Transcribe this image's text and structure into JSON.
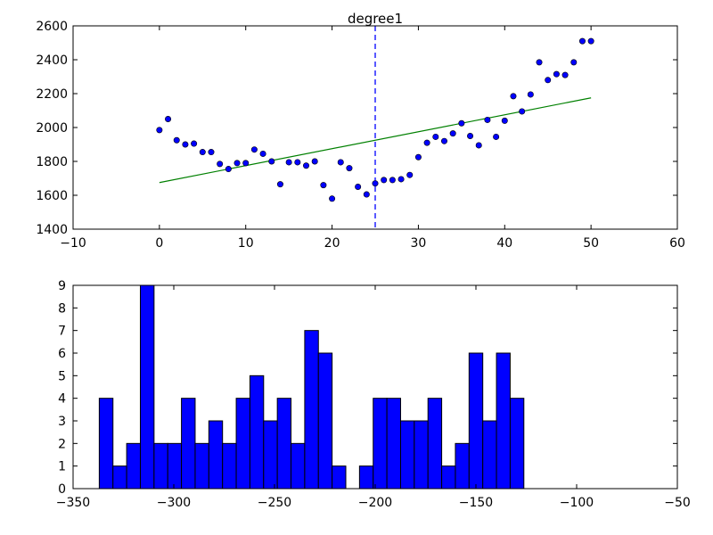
{
  "colors": {
    "scatter_fill": "#0000ff",
    "fit_line": "#008000",
    "marker_line": "#0000ff",
    "bar_fill": "#0000ff",
    "bar_edge": "#000000",
    "axes": "#000000",
    "background": "#ffffff"
  },
  "chart_data": [
    {
      "type": "scatter",
      "title": "degree1",
      "xlabel": "",
      "ylabel": "",
      "xlim": [
        -10,
        60
      ],
      "ylim": [
        1400,
        2600
      ],
      "xticks": [
        -10,
        0,
        10,
        20,
        30,
        40,
        50,
        60
      ],
      "yticks": [
        1400,
        1600,
        1800,
        2000,
        2200,
        2400,
        2600
      ],
      "grid": false,
      "points": {
        "x": [
          0,
          1,
          2,
          3,
          4,
          5,
          6,
          7,
          8,
          9,
          10,
          11,
          12,
          13,
          14,
          15,
          16,
          17,
          18,
          19,
          20,
          21,
          22,
          23,
          24,
          25,
          26,
          27,
          28,
          29,
          30,
          31,
          32,
          33,
          34,
          35,
          36,
          37,
          38,
          39,
          40,
          41,
          42,
          43,
          44,
          45,
          46,
          47,
          48,
          49,
          50
        ],
        "y": [
          1985,
          2050,
          1925,
          1900,
          1905,
          1855,
          1855,
          1785,
          1755,
          1790,
          1790,
          1870,
          1845,
          1800,
          1665,
          1795,
          1795,
          1775,
          1800,
          1660,
          1580,
          1795,
          1760,
          1650,
          1605,
          1670,
          1690,
          1690,
          1695,
          1720,
          1825,
          1910,
          1945,
          1920,
          1965,
          2025,
          1950,
          1895,
          2045,
          1945,
          2040,
          2185,
          2095,
          2195,
          2385,
          2280,
          2315,
          2310,
          2385,
          2510,
          2510
        ]
      },
      "fit_line": {
        "x": [
          0,
          50
        ],
        "y": [
          1675,
          2175
        ]
      },
      "vertical_marker": {
        "x": 25,
        "style": "dashed"
      }
    },
    {
      "type": "bar",
      "title": "",
      "xlabel": "",
      "ylabel": "",
      "xlim": [
        -350,
        -50
      ],
      "ylim": [
        0,
        9
      ],
      "xticks": [
        -350,
        -300,
        -250,
        -200,
        -150,
        -100,
        -50
      ],
      "yticks": [
        0,
        1,
        2,
        3,
        4,
        5,
        6,
        7,
        8,
        9
      ],
      "grid": false,
      "bin_start": -337,
      "bin_width": 6.8,
      "counts": [
        4,
        1,
        2,
        9,
        2,
        2,
        4,
        2,
        3,
        2,
        4,
        5,
        3,
        4,
        2,
        7,
        6,
        1,
        0,
        1,
        4,
        4,
        3,
        3,
        4,
        1,
        2,
        6,
        3,
        6,
        4
      ]
    }
  ]
}
